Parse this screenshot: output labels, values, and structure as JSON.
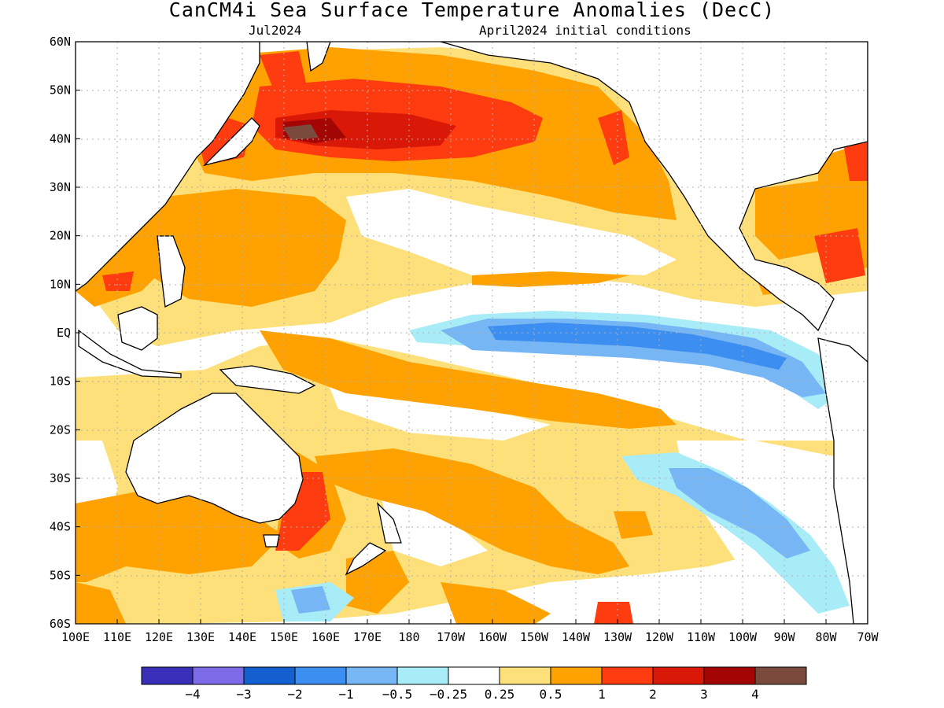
{
  "title": "CanCM4i Sea Surface Temperature Anomalies (DecC)",
  "subtitle_left": "Jul2024",
  "subtitle_right": "April2024 initial conditions",
  "map": {
    "lat_labels": [
      "60N",
      "50N",
      "40N",
      "30N",
      "20N",
      "10N",
      "EQ",
      "10S",
      "20S",
      "30S",
      "40S",
      "50S",
      "60S"
    ],
    "lon_labels": [
      "100E",
      "110E",
      "120E",
      "130E",
      "140E",
      "150E",
      "160E",
      "170E",
      "180",
      "170W",
      "160W",
      "150W",
      "140W",
      "130W",
      "120W",
      "110W",
      "100W",
      "90W",
      "80W",
      "70W"
    ],
    "colors": {
      "ocean_neutral": "#ffffff",
      "land": "#ffffff",
      "coast": "#000000",
      "grid": "#b0b0b0"
    }
  },
  "colorbar": {
    "colors": [
      "#3a2fb8",
      "#7d6be8",
      "#1560d0",
      "#3c8ef0",
      "#76b6f4",
      "#a8ecf8",
      "#ffffff",
      "#fde07a",
      "#ffa200",
      "#ff3c0f",
      "#d91808",
      "#a40606",
      "#7a4b3c"
    ],
    "labels": [
      "−4",
      "−3",
      "−2",
      "−1",
      "−0.5",
      "−0.25",
      "0.25",
      "0.5",
      "1",
      "2",
      "3",
      "4"
    ]
  }
}
